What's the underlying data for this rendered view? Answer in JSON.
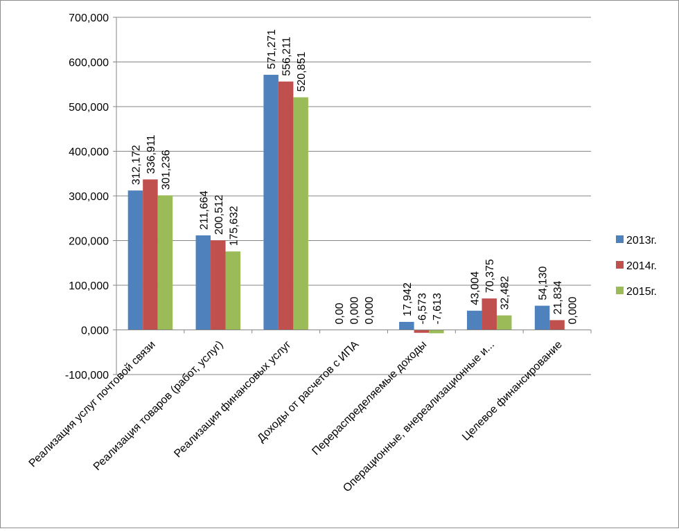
{
  "chart_data": {
    "type": "bar",
    "title": "",
    "xlabel": "",
    "ylabel": "",
    "ylim": [
      -100,
      700
    ],
    "yticks": [
      700,
      600,
      500,
      400,
      300,
      200,
      100,
      0,
      -100
    ],
    "ytick_labels": [
      "700,000",
      "600,000",
      "500,000",
      "400,000",
      "300,000",
      "200,000",
      "100,000",
      "0,000",
      "-100,000"
    ],
    "grid": true,
    "legend_position": "right",
    "categories": [
      "Реализация услуг почтовой связи",
      "Реализация товаров (работ, услуг)",
      "Реализация финансовых услуг",
      "Доходы от расчетов с ИПА",
      "Перераспределяемые доходы",
      "Операционные, внереализационные и...",
      "Целевое финансирование"
    ],
    "series": [
      {
        "name": "2013г.",
        "color": "#4f81bd",
        "values": [
          312.172,
          211.664,
          571.271,
          0,
          17.942,
          43.004,
          54.13
        ],
        "labels": [
          "312,172",
          "211,664",
          "571,271",
          "0,00",
          "17,942",
          "43,004",
          "54,130"
        ]
      },
      {
        "name": "2014г.",
        "color": "#c0504d",
        "values": [
          336.911,
          200.512,
          556.211,
          0,
          -6.573,
          70.375,
          21.834
        ],
        "labels": [
          "336,911",
          "200,512",
          "556,211",
          "0,000",
          "-6,573",
          "70,375",
          "21,834"
        ]
      },
      {
        "name": "2015г.",
        "color": "#9bbb59",
        "values": [
          301.236,
          175.632,
          520.851,
          0,
          -7.613,
          32.482,
          0
        ],
        "labels": [
          "301,236",
          "175,632",
          "520,851",
          "0,000",
          "-7,613",
          "32,482",
          "0,000"
        ]
      }
    ]
  }
}
